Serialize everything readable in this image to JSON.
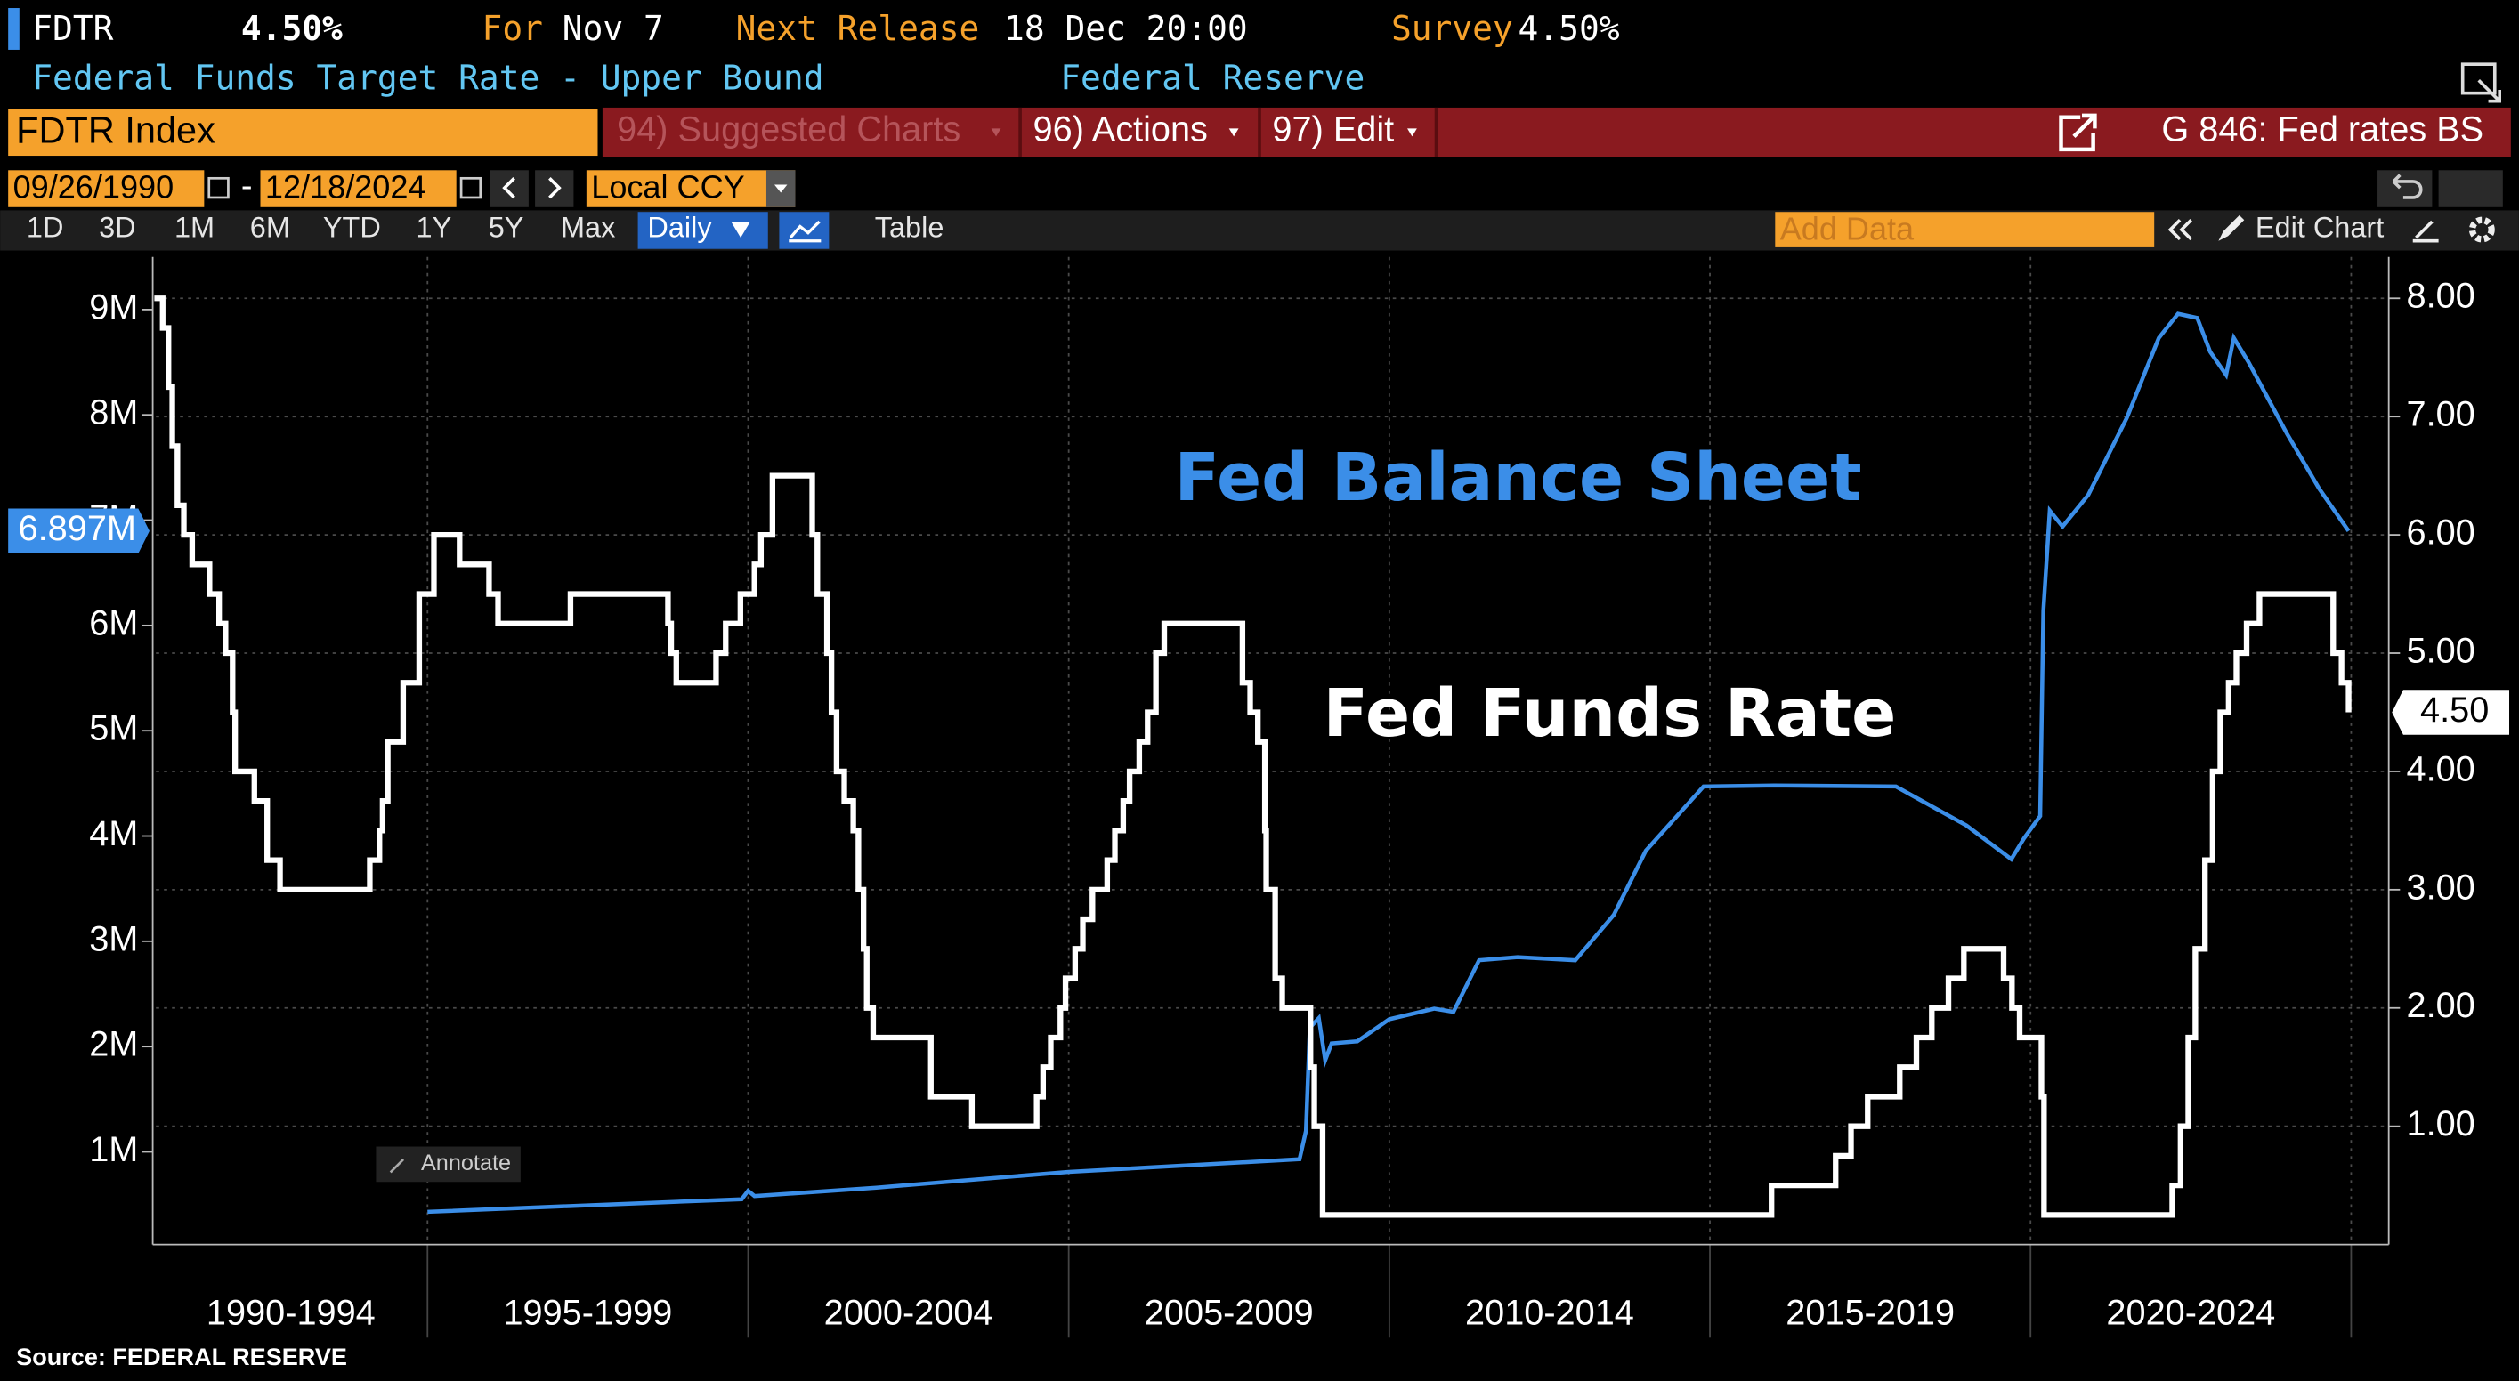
{
  "header": {
    "ticker": "FDTR",
    "price": "4.50%",
    "for_label": "For",
    "for_date": "Nov 7",
    "next_label": "Next Release",
    "next_date": "18 Dec 20:00",
    "survey_label": "Survey",
    "survey_value": "4.50%",
    "description": "Federal Funds Target Rate - Upper Bound",
    "source_org": "Federal Reserve"
  },
  "command_bar": {
    "security": "FDTR Index",
    "menu": [
      "94) Suggested Charts",
      "96) Actions",
      "97) Edit"
    ],
    "chart_name": "G 846: Fed rates BS"
  },
  "range": {
    "start": "09/26/1990",
    "separator": "-",
    "end": "12/18/2024",
    "currency": "Local CCY"
  },
  "toolbar": {
    "periods": [
      "1D",
      "3D",
      "1M",
      "6M",
      "YTD",
      "1Y",
      "5Y",
      "Max"
    ],
    "frequency": "Daily",
    "table": "Table",
    "add_data": "Add Data",
    "edit_chart": "Edit Chart",
    "annotate": "Annotate"
  },
  "chart_data": {
    "type": "line",
    "source": "Source: FEDERAL RESERVE",
    "grid": true,
    "xlim": [
      1990.74,
      2024.96
    ],
    "xgrid": [
      1995,
      2000,
      2005,
      2010,
      2015,
      2020,
      2025
    ],
    "xticks": [
      {
        "value": 1992.87,
        "label": "1990-1994"
      },
      {
        "value": 1997.5,
        "label": "1995-1999"
      },
      {
        "value": 2002.5,
        "label": "2000-2004"
      },
      {
        "value": 2007.5,
        "label": "2005-2009"
      },
      {
        "value": 2012.5,
        "label": "2010-2014"
      },
      {
        "value": 2017.5,
        "label": "2015-2019"
      },
      {
        "value": 2022.5,
        "label": "2020-2024"
      }
    ],
    "ylim": [
      0.12,
      9.5
    ],
    "yticks": [
      {
        "value": 1,
        "label": "1M"
      },
      {
        "value": 2,
        "label": "2M"
      },
      {
        "value": 3,
        "label": "3M"
      },
      {
        "value": 4,
        "label": "4M"
      },
      {
        "value": 5,
        "label": "5M"
      },
      {
        "value": 6,
        "label": "6M"
      },
      {
        "value": 7,
        "label": "7M"
      },
      {
        "value": 8,
        "label": "8M"
      },
      {
        "value": 9,
        "label": "9M"
      }
    ],
    "y2lim": [
      0,
      8.35
    ],
    "y2ticks": [
      {
        "value": 1,
        "label": "1.00"
      },
      {
        "value": 2,
        "label": "2.00"
      },
      {
        "value": 3,
        "label": "3.00"
      },
      {
        "value": 4,
        "label": "4.00"
      },
      {
        "value": 5,
        "label": "5.00"
      },
      {
        "value": 6,
        "label": "6.00"
      },
      {
        "value": 7,
        "label": "7.00"
      },
      {
        "value": 8,
        "label": "8.00"
      }
    ],
    "series": [
      {
        "name": "Fed Balance Sheet",
        "color": "#3b8ee8",
        "axis": "y",
        "last_value_label": "6.897M",
        "x": [
          1995,
          1997,
          1999.9,
          2000,
          2000.1,
          2002,
          2005,
          2008.6,
          2008.7,
          2008.76,
          2008.9,
          2009,
          2009.1,
          2009.5,
          2010,
          2010.7,
          2011,
          2011.4,
          2012,
          2012.9,
          2013.5,
          2014,
          2014.9,
          2016,
          2017.9,
          2019,
          2019.7,
          2019.9,
          2020.15,
          2020.2,
          2020.3,
          2020.5,
          2020.9,
          2021.5,
          2022,
          2022.3,
          2022.6,
          2022.8,
          2023.05,
          2023.17,
          2023.4,
          2024,
          2024.5,
          2024.96
        ],
        "values": [
          0.43,
          0.48,
          0.55,
          0.63,
          0.58,
          0.66,
          0.81,
          0.93,
          1.2,
          2.18,
          2.27,
          1.87,
          2.03,
          2.05,
          2.26,
          2.36,
          2.33,
          2.82,
          2.85,
          2.82,
          3.25,
          3.86,
          4.47,
          4.48,
          4.47,
          4.1,
          3.78,
          3.98,
          4.19,
          6.14,
          7.09,
          6.94,
          7.24,
          7.97,
          8.73,
          8.96,
          8.92,
          8.6,
          8.38,
          8.73,
          8.5,
          7.82,
          7.3,
          6.897
        ]
      },
      {
        "name": "Fed Funds Rate",
        "color": "#ffffff",
        "axis": "y2",
        "step": "post",
        "last_value_label": "4.50",
        "x": [
          1990.74,
          1990.87,
          1990.96,
          1991.02,
          1991.1,
          1991.2,
          1991.33,
          1991.6,
          1991.75,
          1991.85,
          1991.96,
          1992.0,
          1992.3,
          1992.5,
          1992.7,
          1994.1,
          1994.25,
          1994.3,
          1994.38,
          1994.62,
          1994.87,
          1995.1,
          1995.5,
          1995.96,
          1996.1,
          1997.23,
          1998.75,
          1998.8,
          1998.88,
          1999.5,
          1999.65,
          1999.88,
          2000.1,
          2000.2,
          2000.38,
          2001.0,
          2001.08,
          2001.23,
          2001.3,
          2001.38,
          2001.5,
          2001.64,
          2001.72,
          2001.8,
          2001.85,
          2001.95,
          2002.85,
          2003.49,
          2004.5,
          2004.6,
          2004.72,
          2004.87,
          2004.95,
          2005.1,
          2005.22,
          2005.37,
          2005.6,
          2005.72,
          2005.85,
          2005.95,
          2006.1,
          2006.23,
          2006.36,
          2006.49,
          2007.71,
          2007.83,
          2007.95,
          2008.06,
          2008.08,
          2008.22,
          2008.33,
          2008.77,
          2008.83,
          2008.96,
          2015.96,
          2016.96,
          2017.2,
          2017.46,
          2017.96,
          2018.22,
          2018.46,
          2018.72,
          2018.96,
          2019.58,
          2019.71,
          2019.83,
          2020.17,
          2020.21,
          2022.21,
          2022.34,
          2022.46,
          2022.57,
          2022.72,
          2022.84,
          2022.96,
          2023.09,
          2023.21,
          2023.37,
          2023.57,
          2024.72,
          2024.85,
          2024.96
        ],
        "values": [
          8.0,
          7.75,
          7.25,
          6.75,
          6.25,
          6.0,
          5.75,
          5.5,
          5.25,
          5.0,
          4.5,
          4.0,
          3.75,
          3.25,
          3.0,
          3.25,
          3.5,
          3.75,
          4.25,
          4.75,
          5.5,
          6.0,
          5.75,
          5.5,
          5.25,
          5.5,
          5.25,
          5.0,
          4.75,
          5.0,
          5.25,
          5.5,
          5.75,
          6.0,
          6.5,
          6.0,
          5.5,
          5.0,
          4.5,
          4.0,
          3.75,
          3.5,
          3.0,
          2.5,
          2.0,
          1.75,
          1.25,
          1.0,
          1.25,
          1.5,
          1.75,
          2.0,
          2.25,
          2.5,
          2.75,
          3.0,
          3.25,
          3.5,
          3.75,
          4.0,
          4.25,
          4.5,
          5.0,
          5.25,
          4.75,
          4.5,
          4.25,
          3.5,
          3.0,
          2.25,
          2.0,
          1.5,
          1.0,
          0.25,
          0.5,
          0.75,
          1.0,
          1.25,
          1.5,
          1.75,
          2.0,
          2.25,
          2.5,
          2.25,
          2.0,
          1.75,
          1.25,
          0.25,
          0.5,
          1.0,
          1.75,
          2.5,
          3.25,
          4.0,
          4.5,
          4.75,
          5.0,
          5.25,
          5.5,
          5.0,
          4.75,
          4.5
        ]
      }
    ]
  }
}
